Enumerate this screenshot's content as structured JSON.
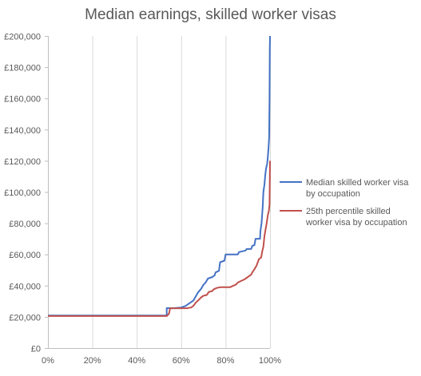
{
  "chart_data": {
    "type": "line",
    "title": "Median earnings, skilled worker visas",
    "xlabel": "",
    "ylabel": "",
    "xlim": [
      0,
      1
    ],
    "ylim": [
      0,
      200000
    ],
    "x_ticks": [
      0,
      0.2,
      0.4,
      0.6,
      0.8,
      1.0
    ],
    "x_tick_labels": [
      "0%",
      "20%",
      "40%",
      "60%",
      "80%",
      "100%"
    ],
    "y_ticks": [
      0,
      20000,
      40000,
      60000,
      80000,
      100000,
      120000,
      140000,
      160000,
      180000,
      200000
    ],
    "y_tick_labels": [
      "£0",
      "£20,000",
      "£40,000",
      "£60,000",
      "£80,000",
      "£100,000",
      "£120,000",
      "£140,000",
      "£160,000",
      "£180,000",
      "£200,000"
    ],
    "grid": "vertical",
    "legend_position": "right",
    "series": [
      {
        "name": "Median skilled worker visa by occupation",
        "color": "#4472c4",
        "points": [
          [
            0.0,
            20800
          ],
          [
            0.535,
            20800
          ],
          [
            0.535,
            25600
          ],
          [
            0.565,
            25600
          ],
          [
            0.6,
            26000
          ],
          [
            0.62,
            27000
          ],
          [
            0.635,
            28500
          ],
          [
            0.655,
            30500
          ],
          [
            0.665,
            33000
          ],
          [
            0.675,
            35500
          ],
          [
            0.69,
            38000
          ],
          [
            0.7,
            40500
          ],
          [
            0.71,
            42000
          ],
          [
            0.72,
            44500
          ],
          [
            0.74,
            45500
          ],
          [
            0.75,
            46500
          ],
          [
            0.755,
            48500
          ],
          [
            0.77,
            49500
          ],
          [
            0.775,
            55000
          ],
          [
            0.795,
            56000
          ],
          [
            0.8,
            60000
          ],
          [
            0.855,
            60000
          ],
          [
            0.86,
            61500
          ],
          [
            0.89,
            62500
          ],
          [
            0.895,
            63500
          ],
          [
            0.915,
            63500
          ],
          [
            0.92,
            65500
          ],
          [
            0.93,
            66000
          ],
          [
            0.935,
            70000
          ],
          [
            0.955,
            70000
          ],
          [
            0.957,
            75000
          ],
          [
            0.962,
            80000
          ],
          [
            0.967,
            90000
          ],
          [
            0.97,
            100000
          ],
          [
            0.975,
            105000
          ],
          [
            0.978,
            110000
          ],
          [
            0.982,
            115000
          ],
          [
            0.987,
            118000
          ],
          [
            0.99,
            122000
          ],
          [
            0.993,
            128000
          ],
          [
            0.996,
            135000
          ],
          [
            0.998,
            160000
          ],
          [
            0.999,
            190000
          ],
          [
            1.0,
            200000
          ]
        ]
      },
      {
        "name": "25th percentile skilled worker visa by occupation",
        "color": "#c0504d",
        "points": [
          [
            0.0,
            20500
          ],
          [
            0.535,
            20500
          ],
          [
            0.545,
            22000
          ],
          [
            0.55,
            25400
          ],
          [
            0.605,
            25500
          ],
          [
            0.625,
            25500
          ],
          [
            0.645,
            26000
          ],
          [
            0.655,
            27000
          ],
          [
            0.66,
            28000
          ],
          [
            0.665,
            29000
          ],
          [
            0.68,
            31000
          ],
          [
            0.69,
            32500
          ],
          [
            0.7,
            33500
          ],
          [
            0.715,
            34000
          ],
          [
            0.725,
            36000
          ],
          [
            0.74,
            36500
          ],
          [
            0.745,
            37500
          ],
          [
            0.76,
            38500
          ],
          [
            0.775,
            39000
          ],
          [
            0.82,
            39000
          ],
          [
            0.835,
            40000
          ],
          [
            0.845,
            40500
          ],
          [
            0.855,
            42000
          ],
          [
            0.87,
            43000
          ],
          [
            0.885,
            44000
          ],
          [
            0.895,
            45000
          ],
          [
            0.905,
            46000
          ],
          [
            0.915,
            47000
          ],
          [
            0.92,
            48500
          ],
          [
            0.925,
            49500
          ],
          [
            0.93,
            50500
          ],
          [
            0.94,
            53000
          ],
          [
            0.95,
            57000
          ],
          [
            0.96,
            58000
          ],
          [
            0.965,
            62000
          ],
          [
            0.97,
            65000
          ],
          [
            0.975,
            72000
          ],
          [
            0.985,
            80000
          ],
          [
            0.99,
            85000
          ],
          [
            0.995,
            88000
          ],
          [
            0.998,
            92000
          ],
          [
            1.0,
            120000
          ]
        ]
      }
    ]
  }
}
